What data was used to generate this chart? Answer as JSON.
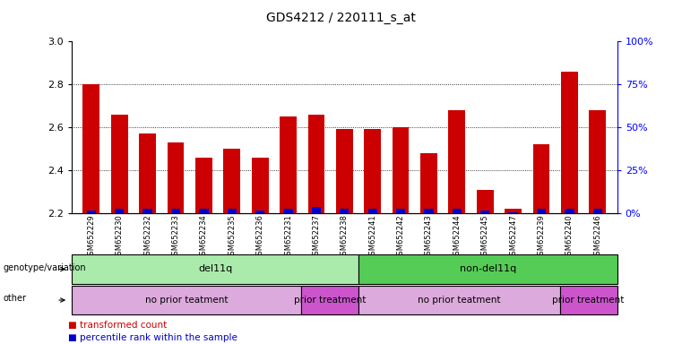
{
  "title": "GDS4212 / 220111_s_at",
  "samples": [
    "GSM652229",
    "GSM652230",
    "GSM652232",
    "GSM652233",
    "GSM652234",
    "GSM652235",
    "GSM652236",
    "GSM652231",
    "GSM652237",
    "GSM652238",
    "GSM652241",
    "GSM652242",
    "GSM652243",
    "GSM652244",
    "GSM652245",
    "GSM652247",
    "GSM652239",
    "GSM652240",
    "GSM652246"
  ],
  "transformed_count": [
    2.8,
    2.66,
    2.57,
    2.53,
    2.46,
    2.5,
    2.46,
    2.65,
    2.66,
    2.59,
    2.59,
    2.6,
    2.48,
    2.68,
    2.31,
    2.22,
    2.52,
    2.86,
    2.68
  ],
  "percentile_rank": [
    5,
    8,
    8,
    8,
    8,
    8,
    5,
    8,
    10,
    8,
    8,
    8,
    8,
    8,
    5,
    2,
    8,
    8,
    8
  ],
  "ymin": 2.2,
  "ymax": 3.0,
  "yticks": [
    2.2,
    2.4,
    2.6,
    2.8,
    3.0
  ],
  "right_ytick_labels": [
    "0%",
    "25%",
    "50%",
    "75%",
    "100%"
  ],
  "bar_color": "#cc0000",
  "percentile_color": "#0000cc",
  "bar_width": 0.6,
  "genotype_groups": [
    {
      "label": "del11q",
      "start": 0,
      "end": 9,
      "color": "#aaeaaa"
    },
    {
      "label": "non-del11q",
      "start": 10,
      "end": 18,
      "color": "#55cc55"
    }
  ],
  "treatment_groups": [
    {
      "label": "no prior teatment",
      "start": 0,
      "end": 7,
      "color": "#ddaadd"
    },
    {
      "label": "prior treatment",
      "start": 8,
      "end": 9,
      "color": "#cc55cc"
    },
    {
      "label": "no prior teatment",
      "start": 10,
      "end": 16,
      "color": "#ddaadd"
    },
    {
      "label": "prior treatment",
      "start": 17,
      "end": 18,
      "color": "#cc55cc"
    }
  ]
}
